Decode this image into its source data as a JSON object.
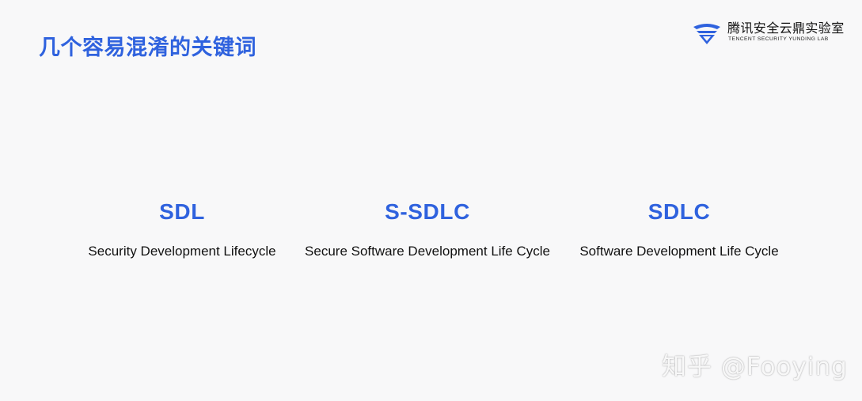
{
  "slide": {
    "title": "几个容易混淆的关键词",
    "brand": {
      "logo_icon": "tencent-yunding-shield-logo-icon",
      "name": "腾讯安全云鼎实验室",
      "subtitle": "TENCENT SECURITY YUNDING LAB"
    },
    "terms": [
      {
        "acronym": "SDL",
        "full": "Security Development Lifecycle"
      },
      {
        "acronym": "S-SDLC",
        "full": "Secure Software Development Life Cycle"
      },
      {
        "acronym": "SDLC",
        "full": "Software Development Life Cycle"
      }
    ],
    "watermark": "知乎 @Fooying"
  },
  "colors": {
    "accent_blue": "#2f62de",
    "text_dark": "#111111",
    "background": "#f8f8f9"
  }
}
